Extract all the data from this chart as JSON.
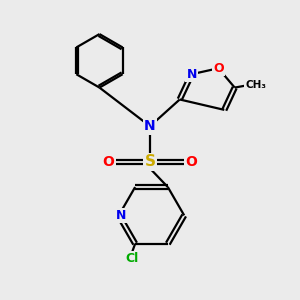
{
  "background_color": "#ebebeb",
  "atom_colors": {
    "C": "#000000",
    "N": "#0000ee",
    "O": "#ff0000",
    "S": "#ccaa00",
    "Cl": "#00aa00",
    "H": "#000000"
  },
  "figsize": [
    3.0,
    3.0
  ],
  "dpi": 100,
  "xlim": [
    0,
    10
  ],
  "ylim": [
    0,
    10
  ]
}
